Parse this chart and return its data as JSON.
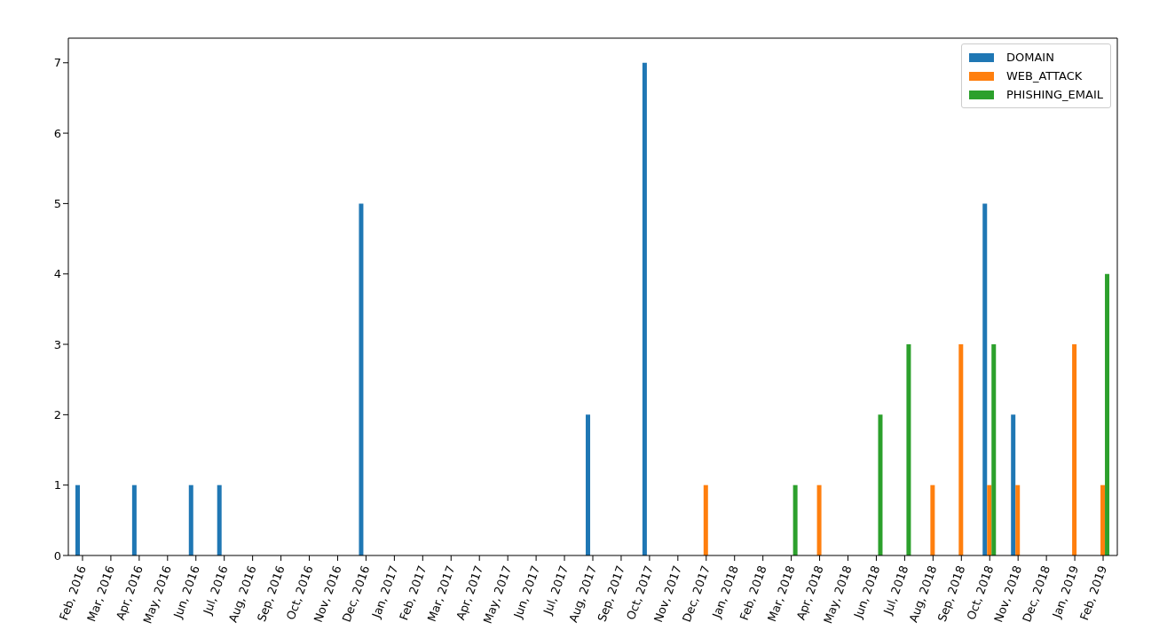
{
  "chart_data": {
    "type": "bar",
    "categories": [
      "Feb, 2016",
      "Mar, 2016",
      "Apr, 2016",
      "May, 2016",
      "Jun, 2016",
      "Jul, 2016",
      "Aug, 2016",
      "Sep, 2016",
      "Oct, 2016",
      "Nov, 2016",
      "Dec, 2016",
      "Jan, 2017",
      "Feb, 2017",
      "Mar, 2017",
      "Apr, 2017",
      "May, 2017",
      "Jun, 2017",
      "Jul, 2017",
      "Aug, 2017",
      "Sep, 2017",
      "Oct, 2017",
      "Nov, 2017",
      "Dec, 2017",
      "Jan, 2018",
      "Feb, 2018",
      "Mar, 2018",
      "Apr, 2018",
      "May, 2018",
      "Jun, 2018",
      "Jul, 2018",
      "Aug, 2018",
      "Sep, 2018",
      "Oct, 2018",
      "Nov, 2018",
      "Dec, 2018",
      "Jan, 2019",
      "Feb, 2019"
    ],
    "series": [
      {
        "name": "DOMAIN",
        "color": "#1f77b4",
        "values": [
          1,
          0,
          1,
          0,
          1,
          1,
          0,
          0,
          0,
          0,
          5,
          0,
          0,
          0,
          0,
          0,
          0,
          0,
          2,
          0,
          7,
          0,
          0,
          0,
          0,
          0,
          0,
          0,
          0,
          0,
          0,
          0,
          5,
          2,
          0,
          0,
          0
        ]
      },
      {
        "name": "WEB_ATTACK",
        "color": "#ff7f0e",
        "values": [
          0,
          0,
          0,
          0,
          0,
          0,
          0,
          0,
          0,
          0,
          0,
          0,
          0,
          0,
          0,
          0,
          0,
          0,
          0,
          0,
          0,
          0,
          1,
          0,
          0,
          0,
          1,
          0,
          0,
          0,
          1,
          3,
          1,
          1,
          0,
          3,
          1
        ]
      },
      {
        "name": "PHISHING_EMAIL",
        "color": "#2ca02c",
        "values": [
          0,
          0,
          0,
          0,
          0,
          0,
          0,
          0,
          0,
          0,
          0,
          0,
          0,
          0,
          0,
          0,
          0,
          0,
          0,
          0,
          0,
          0,
          0,
          0,
          0,
          1,
          0,
          0,
          2,
          3,
          0,
          0,
          3,
          0,
          0,
          0,
          4
        ]
      }
    ],
    "ylim": [
      0,
      7.35
    ],
    "yticks": [
      0,
      1,
      2,
      3,
      4,
      5,
      6,
      7
    ],
    "legend": "top right"
  }
}
